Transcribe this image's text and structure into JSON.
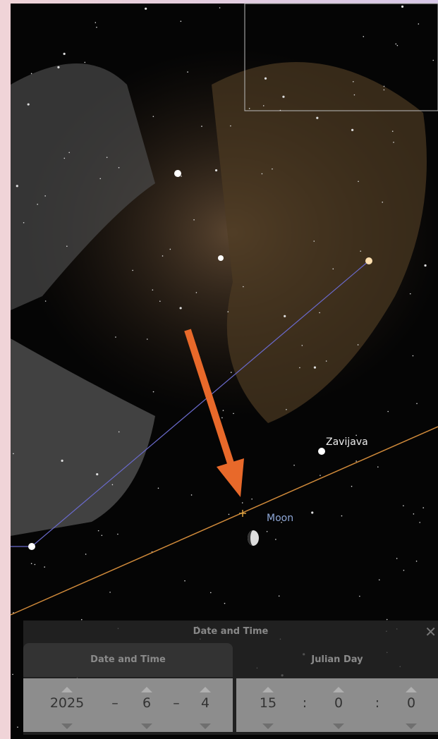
{
  "sky_labels": {
    "star": "Zavijava",
    "planet": "Moon"
  },
  "dialog": {
    "title": "Date and Time",
    "tabs": [
      "Date and Time",
      "Julian Day"
    ],
    "date": {
      "year": 2025,
      "sep1": "–",
      "month": 6,
      "sep2": "–",
      "day": 4
    },
    "time": {
      "hour": 15,
      "sep1": ":",
      "minute": 0,
      "sep2": ":",
      "second": 0
    }
  }
}
